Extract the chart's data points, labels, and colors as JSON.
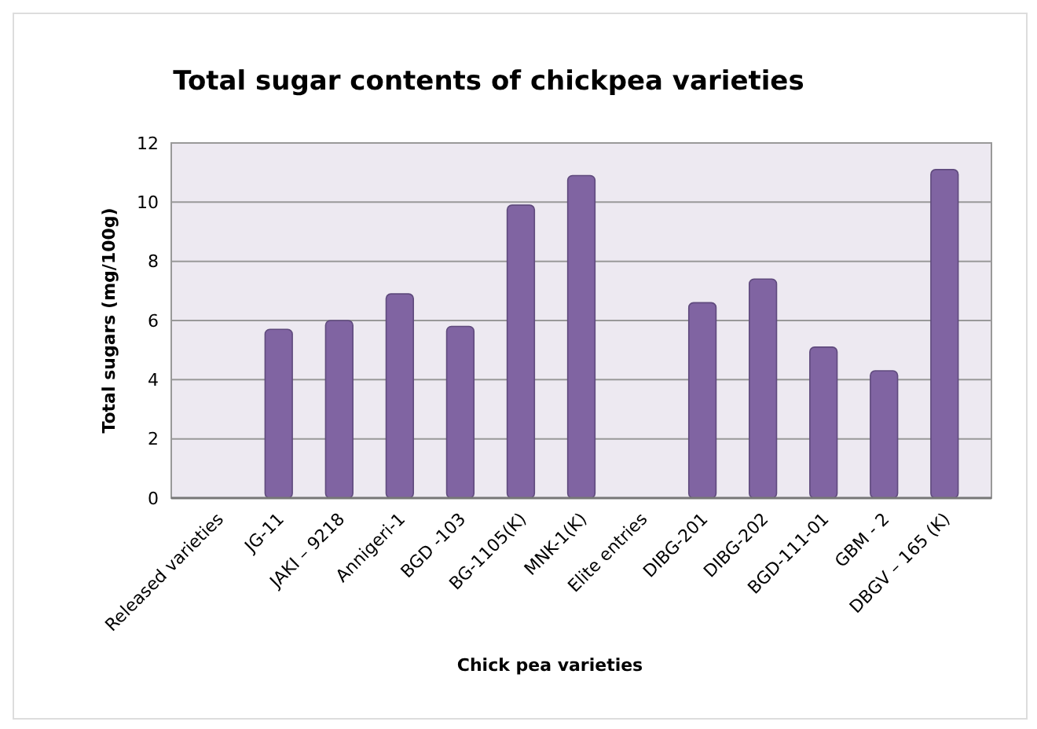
{
  "chart_data": {
    "type": "bar",
    "title": "Total sugar contents of chickpea varieties",
    "xlabel": "Chick pea varieties",
    "ylabel": "Total sugars (mg/100g)",
    "categories": [
      "Released varieties",
      "JG-11",
      "JAKI – 9218",
      "Annigeri-1",
      "BGD -103",
      "BG-1105(K)",
      "MNK-1(K)",
      "Elite entries",
      "DIBG-201",
      "DIBG-202",
      "BGD-111-01",
      "GBM - 2",
      "DBGV – 165 (K)"
    ],
    "values": [
      null,
      5.7,
      6.0,
      6.9,
      5.8,
      9.9,
      10.9,
      null,
      6.6,
      7.4,
      5.1,
      4.3,
      11.1
    ],
    "color": "#8064a2",
    "ylim": [
      0,
      12
    ],
    "yticks": [
      0,
      2,
      4,
      6,
      8,
      10,
      12
    ],
    "grid": "y"
  }
}
